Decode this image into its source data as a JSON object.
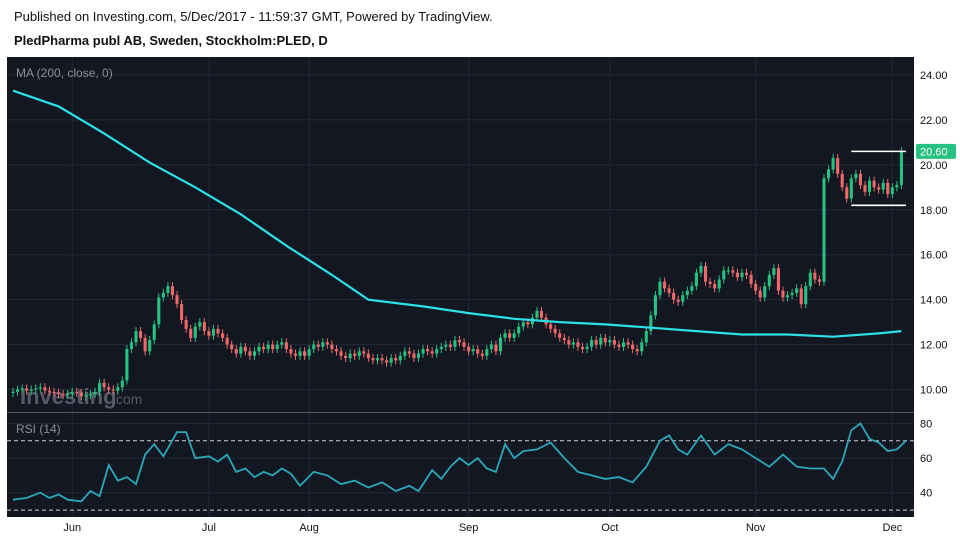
{
  "header": {
    "published": "Published on Investing.com, 5/Dec/2017 - 11:59:37 GMT, Powered by TradingView.",
    "symbol": "PledPharma publ AB, Sweden, Stockholm:PLED, D"
  },
  "watermark": {
    "brand": "Investing",
    "suffix": ".com"
  },
  "colors": {
    "background": "#131722",
    "up": "#26c281",
    "down": "#f0696a",
    "ma": "#2ce0e8",
    "rsi": "#2aa7b8",
    "axis_text": "#111111",
    "last_price_badge": "#26c281"
  },
  "chart_data": [
    {
      "type": "candlestick",
      "indicator_label": "MA (200, close, 0)",
      "y_ticks": [
        "10.00",
        "12.00",
        "14.00",
        "16.00",
        "18.00",
        "20.00",
        "22.00",
        "24.00"
      ],
      "ylim": [
        9.0,
        24.8
      ],
      "last_price": "20.60",
      "x_ticks": [
        {
          "label": "Jun",
          "index": 13
        },
        {
          "label": "Jul",
          "index": 43
        },
        {
          "label": "Aug",
          "index": 65
        },
        {
          "label": "Sep",
          "index": 100
        },
        {
          "label": "Oct",
          "index": 131
        },
        {
          "label": "Nov",
          "index": 163
        },
        {
          "label": "Dec",
          "index": 193
        }
      ],
      "bar_count": 196,
      "candles_close": [
        9.9,
        10.0,
        10.05,
        9.95,
        10.0,
        10.05,
        10.1,
        9.95,
        9.9,
        9.85,
        9.8,
        9.75,
        9.8,
        9.9,
        9.85,
        9.7,
        9.75,
        9.8,
        9.9,
        10.3,
        10.1,
        10.0,
        9.95,
        10.1,
        10.4,
        11.8,
        12.1,
        12.6,
        12.3,
        11.7,
        12.2,
        12.9,
        14.1,
        14.3,
        14.6,
        14.2,
        13.8,
        13.1,
        12.7,
        12.3,
        12.8,
        13.0,
        12.6,
        12.4,
        12.7,
        12.5,
        12.3,
        12.0,
        11.8,
        11.6,
        11.9,
        11.7,
        11.5,
        11.7,
        11.9,
        11.8,
        12.0,
        11.8,
        12.0,
        12.1,
        11.8,
        11.6,
        11.5,
        11.7,
        11.5,
        11.8,
        12.0,
        11.9,
        12.1,
        12.0,
        11.8,
        11.7,
        11.5,
        11.4,
        11.6,
        11.5,
        11.7,
        11.6,
        11.4,
        11.3,
        11.4,
        11.3,
        11.2,
        11.4,
        11.3,
        11.5,
        11.7,
        11.6,
        11.4,
        11.6,
        11.8,
        11.7,
        11.6,
        11.8,
        11.9,
        12.0,
        11.9,
        12.2,
        12.1,
        11.9,
        11.7,
        11.8,
        11.6,
        11.5,
        11.8,
        12.0,
        11.7,
        12.3,
        12.5,
        12.3,
        12.5,
        12.8,
        13.0,
        12.9,
        13.2,
        13.5,
        13.2,
        12.9,
        12.7,
        12.5,
        12.3,
        12.2,
        12.0,
        12.1,
        11.9,
        11.8,
        11.9,
        12.2,
        12.0,
        12.3,
        12.1,
        12.2,
        12.0,
        11.9,
        12.1,
        12.0,
        11.8,
        11.7,
        12.1,
        12.6,
        13.3,
        14.2,
        14.8,
        14.5,
        14.3,
        14.0,
        13.9,
        14.2,
        14.4,
        14.6,
        15.2,
        15.5,
        14.8,
        14.7,
        14.5,
        14.9,
        15.3,
        15.3,
        15.2,
        15.0,
        15.2,
        15.1,
        14.7,
        14.4,
        14.1,
        14.6,
        15.1,
        15.4,
        14.4,
        14.1,
        14.2,
        14.3,
        14.5,
        13.8,
        14.6,
        15.2,
        14.9,
        14.8,
        19.4,
        19.8,
        20.3,
        19.6,
        19.0,
        18.5,
        19.4,
        19.6,
        19.1,
        18.8,
        19.3,
        19.0,
        18.9,
        19.2,
        18.7,
        19.0,
        19.1,
        20.6
      ],
      "moving_average_200": [
        {
          "index": 0,
          "value": 23.3
        },
        {
          "index": 10,
          "value": 22.6
        },
        {
          "index": 20,
          "value": 21.4
        },
        {
          "index": 30,
          "value": 20.1
        },
        {
          "index": 40,
          "value": 19.0
        },
        {
          "index": 50,
          "value": 17.8
        },
        {
          "index": 60,
          "value": 16.4
        },
        {
          "index": 70,
          "value": 15.1
        },
        {
          "index": 78,
          "value": 14.0
        },
        {
          "index": 90,
          "value": 13.7
        },
        {
          "index": 100,
          "value": 13.4
        },
        {
          "index": 110,
          "value": 13.15
        },
        {
          "index": 120,
          "value": 13.0
        },
        {
          "index": 130,
          "value": 12.9
        },
        {
          "index": 140,
          "value": 12.75
        },
        {
          "index": 150,
          "value": 12.6
        },
        {
          "index": 160,
          "value": 12.45
        },
        {
          "index": 170,
          "value": 12.45
        },
        {
          "index": 180,
          "value": 12.35
        },
        {
          "index": 190,
          "value": 12.5
        },
        {
          "index": 195,
          "value": 12.6
        }
      ],
      "annotations": [
        {
          "type": "horizontal-line",
          "value": 20.6,
          "from_index": 184,
          "to_index": 196
        },
        {
          "type": "horizontal-line",
          "value": 18.2,
          "from_index": 184,
          "to_index": 196
        }
      ]
    },
    {
      "type": "line",
      "indicator_label": "RSI (14)",
      "y_ticks": [
        "40",
        "60",
        "80"
      ],
      "ylim": [
        26,
        86
      ],
      "reference_lines": [
        70,
        30
      ],
      "points": [
        {
          "index": 0,
          "value": 36
        },
        {
          "index": 3,
          "value": 37
        },
        {
          "index": 6,
          "value": 40
        },
        {
          "index": 8,
          "value": 37
        },
        {
          "index": 10,
          "value": 39
        },
        {
          "index": 12,
          "value": 36
        },
        {
          "index": 15,
          "value": 35
        },
        {
          "index": 17,
          "value": 41
        },
        {
          "index": 19,
          "value": 38
        },
        {
          "index": 21,
          "value": 56
        },
        {
          "index": 23,
          "value": 47
        },
        {
          "index": 25,
          "value": 49
        },
        {
          "index": 27,
          "value": 45
        },
        {
          "index": 29,
          "value": 62
        },
        {
          "index": 31,
          "value": 68
        },
        {
          "index": 33,
          "value": 61
        },
        {
          "index": 36,
          "value": 75
        },
        {
          "index": 38,
          "value": 75
        },
        {
          "index": 40,
          "value": 60
        },
        {
          "index": 43,
          "value": 61
        },
        {
          "index": 45,
          "value": 58
        },
        {
          "index": 47,
          "value": 62
        },
        {
          "index": 49,
          "value": 52
        },
        {
          "index": 51,
          "value": 54
        },
        {
          "index": 53,
          "value": 49
        },
        {
          "index": 55,
          "value": 52
        },
        {
          "index": 57,
          "value": 50
        },
        {
          "index": 59,
          "value": 54
        },
        {
          "index": 61,
          "value": 51
        },
        {
          "index": 63,
          "value": 44
        },
        {
          "index": 66,
          "value": 52
        },
        {
          "index": 69,
          "value": 50
        },
        {
          "index": 72,
          "value": 45
        },
        {
          "index": 75,
          "value": 47
        },
        {
          "index": 78,
          "value": 43
        },
        {
          "index": 81,
          "value": 46
        },
        {
          "index": 84,
          "value": 41
        },
        {
          "index": 87,
          "value": 44
        },
        {
          "index": 89,
          "value": 41
        },
        {
          "index": 92,
          "value": 53
        },
        {
          "index": 94,
          "value": 48
        },
        {
          "index": 96,
          "value": 55
        },
        {
          "index": 98,
          "value": 60
        },
        {
          "index": 100,
          "value": 56
        },
        {
          "index": 102,
          "value": 60
        },
        {
          "index": 104,
          "value": 54
        },
        {
          "index": 106,
          "value": 52
        },
        {
          "index": 108,
          "value": 68
        },
        {
          "index": 110,
          "value": 60
        },
        {
          "index": 112,
          "value": 64
        },
        {
          "index": 115,
          "value": 65
        },
        {
          "index": 118,
          "value": 69
        },
        {
          "index": 121,
          "value": 60
        },
        {
          "index": 124,
          "value": 52
        },
        {
          "index": 127,
          "value": 50
        },
        {
          "index": 130,
          "value": 48
        },
        {
          "index": 133,
          "value": 49
        },
        {
          "index": 136,
          "value": 46
        },
        {
          "index": 139,
          "value": 55
        },
        {
          "index": 142,
          "value": 70
        },
        {
          "index": 144,
          "value": 73
        },
        {
          "index": 146,
          "value": 65
        },
        {
          "index": 148,
          "value": 62
        },
        {
          "index": 151,
          "value": 73
        },
        {
          "index": 154,
          "value": 62
        },
        {
          "index": 157,
          "value": 68
        },
        {
          "index": 160,
          "value": 65
        },
        {
          "index": 163,
          "value": 60
        },
        {
          "index": 166,
          "value": 55
        },
        {
          "index": 169,
          "value": 62
        },
        {
          "index": 172,
          "value": 55
        },
        {
          "index": 175,
          "value": 54
        },
        {
          "index": 178,
          "value": 54
        },
        {
          "index": 180,
          "value": 48
        },
        {
          "index": 182,
          "value": 58
        },
        {
          "index": 184,
          "value": 76
        },
        {
          "index": 186,
          "value": 80
        },
        {
          "index": 188,
          "value": 71
        },
        {
          "index": 190,
          "value": 69
        },
        {
          "index": 192,
          "value": 64
        },
        {
          "index": 194,
          "value": 65
        },
        {
          "index": 196,
          "value": 70
        }
      ]
    }
  ]
}
